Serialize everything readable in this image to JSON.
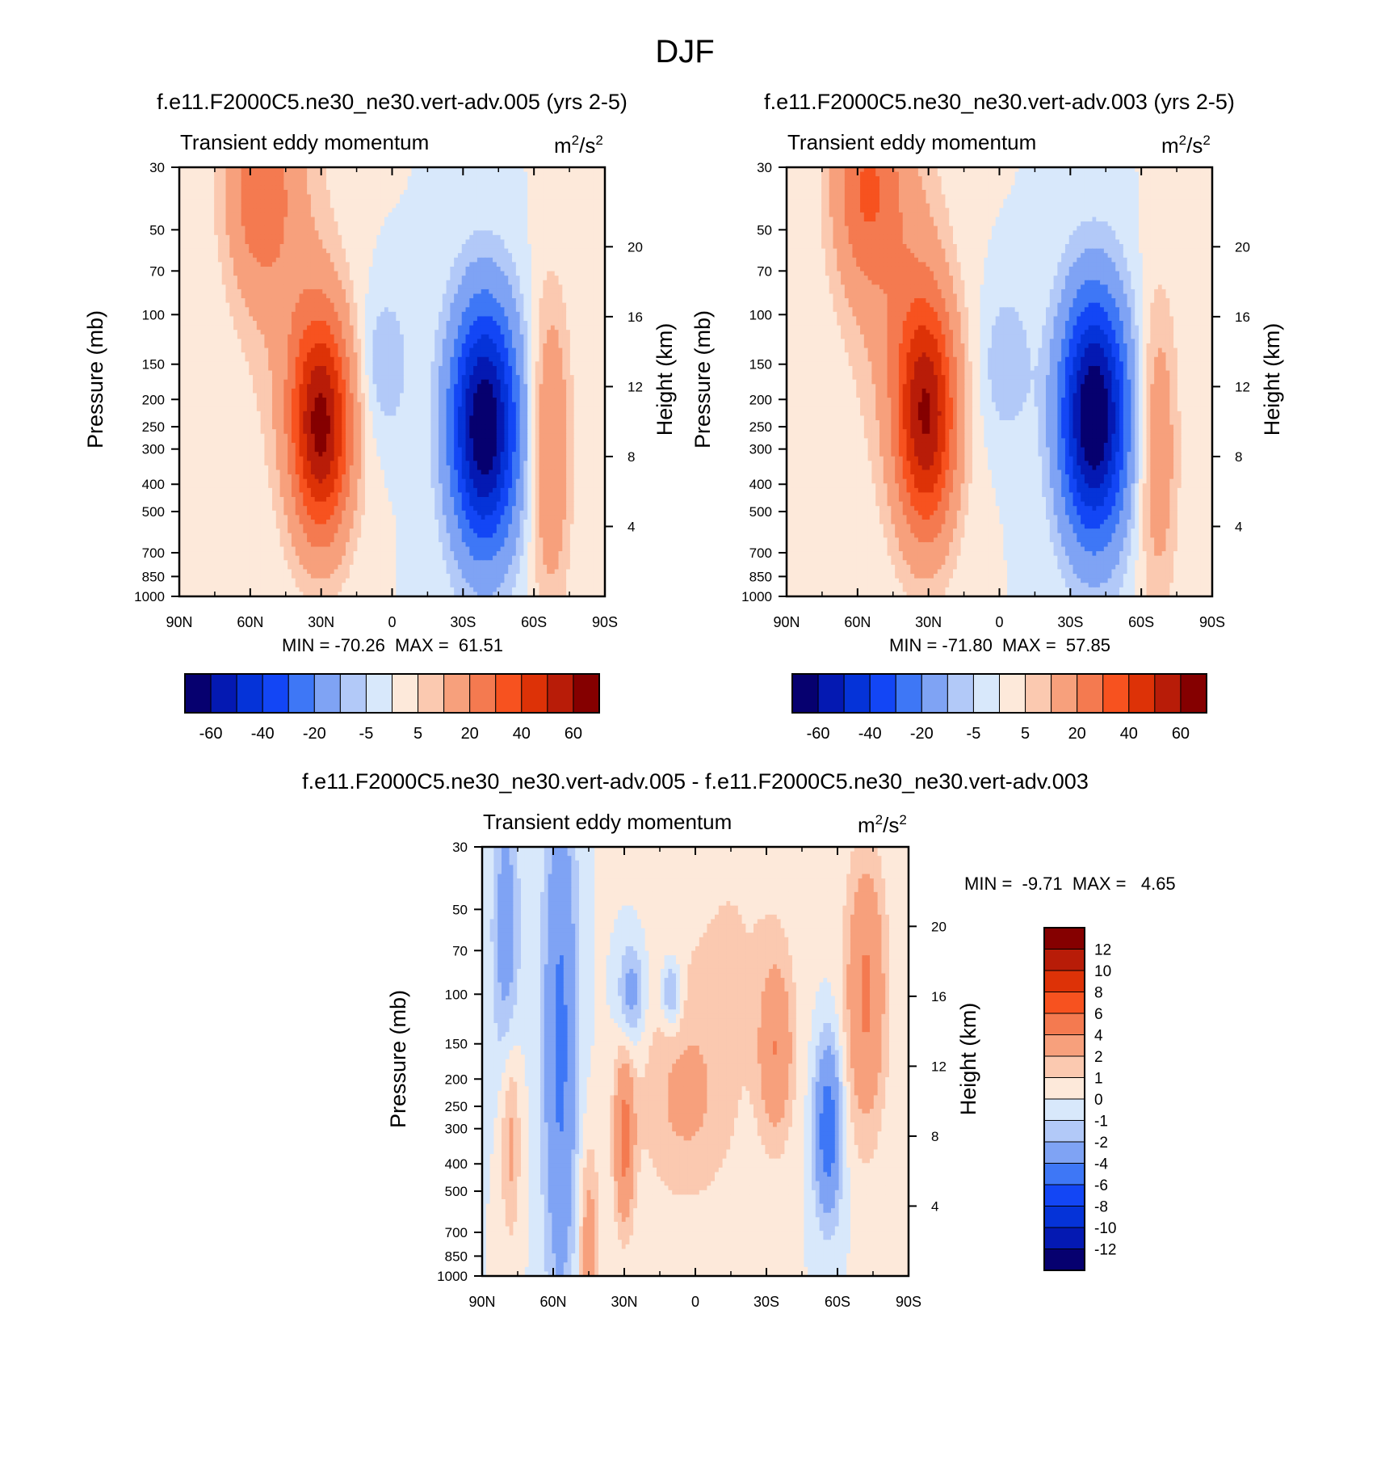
{
  "figure_title": "DJF",
  "chart_data": [
    {
      "type": "contour",
      "title": "f.e11.F2000C5.ne30_ne30.vert-adv.005 (yrs 2-5)",
      "left_subtitle": "Transient eddy momentum",
      "units_base": "m",
      "units_mid": "/s",
      "units_exp": "2",
      "ylabel": "Pressure (mb)",
      "ylabel_right": "Height (km)",
      "x_ticks": [
        "90N",
        "60N",
        "30N",
        "0",
        "30S",
        "60S",
        "90S"
      ],
      "x_tick_values": [
        90,
        60,
        30,
        0,
        -30,
        -60,
        -90
      ],
      "y_ticks": [
        "30",
        "50",
        "70",
        "100",
        "150",
        "200",
        "250",
        "300",
        "400",
        "500",
        "700",
        "850",
        "1000"
      ],
      "y_tick_values": [
        30,
        50,
        70,
        100,
        150,
        200,
        250,
        300,
        400,
        500,
        700,
        850,
        1000
      ],
      "height_ticks": [
        "20",
        "16",
        "12",
        "8",
        "4"
      ],
      "height_tick_values": [
        20,
        16,
        12,
        8,
        4
      ],
      "stats_text": "MIN = -70.26  MAX =  61.51",
      "min": -70.26,
      "max": 61.51,
      "features": [
        {
          "lat": 30,
          "p": 250,
          "amp": 61.5,
          "lat_w": 9,
          "lnp_w": 0.65
        },
        {
          "lat": -39,
          "p": 250,
          "amp": -70.3,
          "lat_w": 10,
          "lnp_w": 0.7
        },
        {
          "lat": 57,
          "p": 35,
          "amp": 22,
          "lat_w": 10,
          "lnp_w": 0.6
        },
        {
          "lat": -67,
          "p": 300,
          "amp": 20,
          "lat_w": 6,
          "lnp_w": 0.9
        },
        {
          "lat": 3,
          "p": 150,
          "amp": -10,
          "lat_w": 7,
          "lnp_w": 0.4
        },
        {
          "lat": 45,
          "p": 60,
          "amp": 10,
          "lat_w": 14,
          "lnp_w": 1.2
        }
      ]
    },
    {
      "type": "contour",
      "title": "f.e11.F2000C5.ne30_ne30.vert-adv.003 (yrs 2-5)",
      "left_subtitle": "Transient eddy momentum",
      "units_base": "m",
      "units_mid": "/s",
      "units_exp": "2",
      "ylabel": "Pressure (mb)",
      "ylabel_right": "Height (km)",
      "x_ticks": [
        "90N",
        "60N",
        "30N",
        "0",
        "30S",
        "60S",
        "90S"
      ],
      "x_tick_values": [
        90,
        60,
        30,
        0,
        -30,
        -60,
        -90
      ],
      "y_ticks": [
        "30",
        "50",
        "70",
        "100",
        "150",
        "200",
        "250",
        "300",
        "400",
        "500",
        "700",
        "850",
        "1000"
      ],
      "y_tick_values": [
        30,
        50,
        70,
        100,
        150,
        200,
        250,
        300,
        400,
        500,
        700,
        850,
        1000
      ],
      "height_ticks": [
        "20",
        "16",
        "12",
        "8",
        "4"
      ],
      "height_tick_values": [
        20,
        16,
        12,
        8,
        4
      ],
      "stats_text": "MIN = -71.80  MAX =  57.85",
      "min": -71.8,
      "max": 57.85,
      "features": [
        {
          "lat": 31,
          "p": 230,
          "amp": 57.9,
          "lat_w": 9,
          "lnp_w": 0.7
        },
        {
          "lat": -40,
          "p": 230,
          "amp": -71.8,
          "lat_w": 10,
          "lnp_w": 0.7
        },
        {
          "lat": 57,
          "p": 35,
          "amp": 24,
          "lat_w": 10,
          "lnp_w": 0.6
        },
        {
          "lat": -67,
          "p": 300,
          "amp": 17,
          "lat_w": 6,
          "lnp_w": 0.9
        },
        {
          "lat": -3,
          "p": 150,
          "amp": -10,
          "lat_w": 7,
          "lnp_w": 0.4
        },
        {
          "lat": 45,
          "p": 60,
          "amp": 12,
          "lat_w": 14,
          "lnp_w": 1.2
        }
      ]
    },
    {
      "type": "contour",
      "title": "f.e11.F2000C5.ne30_ne30.vert-adv.005 - f.e11.F2000C5.ne30_ne30.vert-adv.003",
      "left_subtitle": "Transient eddy momentum",
      "units_base": "m",
      "units_mid": "/s",
      "units_exp": "2",
      "ylabel": "Pressure (mb)",
      "ylabel_right": "Height (km)",
      "x_ticks": [
        "90N",
        "60N",
        "30N",
        "0",
        "30S",
        "60S",
        "90S"
      ],
      "x_tick_values": [
        90,
        60,
        30,
        0,
        -30,
        -60,
        -90
      ],
      "y_ticks": [
        "30",
        "50",
        "70",
        "100",
        "150",
        "200",
        "250",
        "300",
        "400",
        "500",
        "700",
        "850",
        "1000"
      ],
      "y_tick_values": [
        30,
        50,
        70,
        100,
        150,
        200,
        250,
        300,
        400,
        500,
        700,
        850,
        1000
      ],
      "height_ticks": [
        "20",
        "16",
        "12",
        "8",
        "4"
      ],
      "height_tick_values": [
        20,
        16,
        12,
        8,
        4
      ],
      "stats_text": "MIN =  -9.71  MAX =   4.65",
      "min": -9.71,
      "max": 4.65,
      "features": [
        {
          "lat": 57,
          "p": 150,
          "amp": -4.5,
          "lat_w": 5,
          "lnp_w": 1.5
        },
        {
          "lat": 80,
          "p": 60,
          "amp": -3,
          "lat_w": 4,
          "lnp_w": 0.8
        },
        {
          "lat": 30,
          "p": 330,
          "amp": 4.5,
          "lat_w": 3,
          "lnp_w": 0.5
        },
        {
          "lat": 78,
          "p": 320,
          "amp": 2.5,
          "lat_w": 3,
          "lnp_w": 0.6
        },
        {
          "lat": 45,
          "p": 800,
          "amp": 3,
          "lat_w": 3,
          "lnp_w": 0.6
        },
        {
          "lat": -72,
          "p": 100,
          "amp": 4.3,
          "lat_w": 6,
          "lnp_w": 0.8
        },
        {
          "lat": -34,
          "p": 160,
          "amp": 3.5,
          "lat_w": 5,
          "lnp_w": 0.5
        },
        {
          "lat": -56,
          "p": 300,
          "amp": -5.5,
          "lat_w": 4,
          "lnp_w": 0.5
        },
        {
          "lat": 27,
          "p": 100,
          "amp": -3,
          "lat_w": 4,
          "lnp_w": 0.3
        },
        {
          "lat": 10,
          "p": 100,
          "amp": -3,
          "lat_w": 3,
          "lnp_w": 0.2
        },
        {
          "lat": 5,
          "p": 240,
          "amp": 2,
          "lat_w": 14,
          "lnp_w": 0.6
        },
        {
          "lat": -15,
          "p": 60,
          "amp": 1,
          "lat_w": 22,
          "lnp_w": 1.2
        }
      ]
    }
  ],
  "colorbars": [
    {
      "labels": [
        "-60",
        "-40",
        "-20",
        "-5",
        "5",
        "20",
        "40",
        "60"
      ],
      "levels": [
        -70,
        -60,
        -50,
        -40,
        -30,
        -20,
        -10,
        -5,
        0,
        5,
        10,
        20,
        30,
        40,
        50,
        60,
        70
      ],
      "colors": [
        "#06006f",
        "#0419b2",
        "#0533d8",
        "#1346f5",
        "#3e77f6",
        "#7fa3f4",
        "#b2c9f8",
        "#d8e8fb",
        "#fde9da",
        "#fbc9b0",
        "#f7a07c",
        "#f47a50",
        "#f7521f",
        "#dd3207",
        "#b81c08",
        "#850000"
      ]
    },
    {
      "labels": [
        "-60",
        "-40",
        "-20",
        "-5",
        "5",
        "20",
        "40",
        "60"
      ],
      "levels": [
        -70,
        -60,
        -50,
        -40,
        -30,
        -20,
        -10,
        -5,
        0,
        5,
        10,
        20,
        30,
        40,
        50,
        60,
        70
      ],
      "colors": [
        "#06006f",
        "#0419b2",
        "#0533d8",
        "#1346f5",
        "#3e77f6",
        "#7fa3f4",
        "#b2c9f8",
        "#d8e8fb",
        "#fde9da",
        "#fbc9b0",
        "#f7a07c",
        "#f47a50",
        "#f7521f",
        "#dd3207",
        "#b81c08",
        "#850000"
      ]
    },
    {
      "labels": [
        "12",
        "10",
        "8",
        "6",
        "4",
        "2",
        "1",
        "0",
        "-1",
        "-2",
        "-4",
        "-6",
        "-8",
        "-10",
        "-12"
      ],
      "levels": [
        14,
        12,
        10,
        8,
        6,
        4,
        2,
        1,
        0,
        -1,
        -2,
        -4,
        -6,
        -8,
        -10,
        -12,
        -14
      ],
      "colors": [
        "#850000",
        "#b81c08",
        "#dd3207",
        "#f7521f",
        "#f47a50",
        "#f7a07c",
        "#fbc9b0",
        "#fde9da",
        "#d8e8fb",
        "#b2c9f8",
        "#7fa3f4",
        "#3e77f6",
        "#1346f5",
        "#0533d8",
        "#0419b2",
        "#06006f"
      ]
    }
  ]
}
